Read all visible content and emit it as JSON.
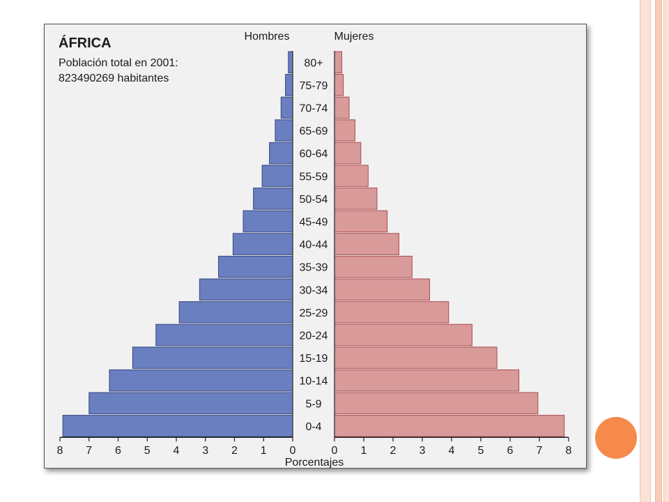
{
  "chart_data": {
    "type": "bar",
    "orientation": "horizontal",
    "layout": "population-pyramid",
    "title": "ÁFRICA",
    "subtitle_lines": [
      "Población total en 2001:",
      "823490269 habitantes"
    ],
    "categories": [
      "80+",
      "75-79",
      "70-74",
      "65-69",
      "60-64",
      "55-59",
      "50-54",
      "45-49",
      "40-44",
      "35-39",
      "30-34",
      "25-29",
      "20-24",
      "15-19",
      "10-14",
      "5-9",
      "0-4"
    ],
    "series": [
      {
        "name": "Hombres",
        "side": "left",
        "color": "#6a7fbf",
        "values": [
          0.15,
          0.25,
          0.4,
          0.6,
          0.8,
          1.05,
          1.35,
          1.7,
          2.05,
          2.55,
          3.2,
          3.9,
          4.7,
          5.5,
          6.3,
          7.0,
          7.9
        ]
      },
      {
        "name": "Mujeres",
        "side": "right",
        "color": "#d99a9a",
        "values": [
          0.25,
          0.3,
          0.5,
          0.7,
          0.9,
          1.15,
          1.45,
          1.8,
          2.2,
          2.65,
          3.25,
          3.9,
          4.7,
          5.55,
          6.3,
          6.95,
          7.85
        ]
      }
    ],
    "xlabel": "Porcentajes",
    "xlim": [
      0,
      8
    ],
    "xticks": [
      "8",
      "7",
      "6",
      "5",
      "4",
      "3",
      "2",
      "1",
      "0",
      "0",
      "1",
      "2",
      "3",
      "4",
      "5",
      "6",
      "7",
      "8"
    ],
    "grid": false
  }
}
